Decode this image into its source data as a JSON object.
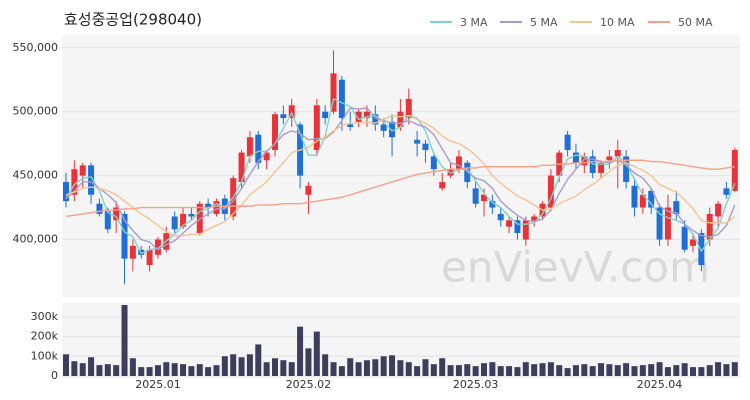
{
  "chart_data": {
    "type": "candlestick",
    "title": "효성중공업(298040)",
    "watermark": "enVievV.com",
    "legend": "top-right",
    "grid": true,
    "up_color": "#e8333a",
    "down_color": "#1f6fd6",
    "categories": [
      null,
      null,
      null,
      null,
      null,
      null,
      null,
      null,
      null,
      null,
      null,
      "2025.01",
      null,
      null,
      null,
      null,
      null,
      null,
      null,
      null,
      null,
      null,
      null,
      null,
      null,
      null,
      null,
      null,
      null,
      "2025.02",
      null,
      null,
      null,
      null,
      null,
      null,
      null,
      null,
      null,
      null,
      null,
      null,
      null,
      null,
      null,
      null,
      null,
      null,
      null,
      "2025.03",
      null,
      null,
      null,
      null,
      null,
      null,
      null,
      null,
      null,
      null,
      null,
      null,
      null,
      null,
      null,
      null,
      null,
      null,
      null,
      null,
      null,
      "2025.04",
      null,
      null,
      null,
      null,
      null,
      null,
      null,
      null,
      null
    ],
    "open": [
      445000,
      435000,
      450000,
      458000,
      428000,
      422000,
      415000,
      420000,
      385000,
      392000,
      380000,
      388000,
      392000,
      418000,
      410000,
      420000,
      405000,
      428000,
      420000,
      432000,
      418000,
      445000,
      465000,
      482000,
      462000,
      470000,
      498000,
      495000,
      490000,
      435000,
      470000,
      500000,
      500000,
      525000,
      490000,
      492000,
      495000,
      498000,
      490000,
      492000,
      488000,
      495000,
      478000,
      475000,
      465000,
      440000,
      450000,
      455000,
      460000,
      440000,
      430000,
      430000,
      420000,
      410000,
      415000,
      400000,
      415000,
      418000,
      425000,
      450000,
      482000,
      468000,
      458000,
      465000,
      452000,
      462000,
      465000,
      465000,
      442000,
      425000,
      438000,
      425000,
      400000,
      430000,
      410000,
      395000,
      405000,
      400000,
      418000,
      440000,
      438000
    ],
    "high": [
      452000,
      462000,
      460000,
      460000,
      432000,
      425000,
      430000,
      422000,
      400000,
      395000,
      395000,
      402000,
      410000,
      422000,
      425000,
      425000,
      430000,
      432000,
      432000,
      435000,
      450000,
      470000,
      485000,
      485000,
      470000,
      500000,
      505000,
      510000,
      492000,
      445000,
      510000,
      505000,
      548000,
      528000,
      500000,
      502000,
      505000,
      505000,
      495000,
      498000,
      510000,
      518000,
      485000,
      478000,
      468000,
      452000,
      460000,
      470000,
      462000,
      445000,
      440000,
      435000,
      425000,
      418000,
      418000,
      418000,
      420000,
      430000,
      455000,
      470000,
      485000,
      475000,
      468000,
      470000,
      462000,
      470000,
      478000,
      470000,
      448000,
      440000,
      440000,
      428000,
      435000,
      438000,
      415000,
      405000,
      408000,
      425000,
      430000,
      445000,
      472000
    ],
    "low": [
      425000,
      430000,
      440000,
      428000,
      418000,
      405000,
      405000,
      365000,
      375000,
      385000,
      375000,
      385000,
      390000,
      405000,
      408000,
      415000,
      403000,
      418000,
      418000,
      415000,
      415000,
      440000,
      460000,
      455000,
      455000,
      465000,
      490000,
      488000,
      440000,
      420000,
      465000,
      490000,
      498000,
      485000,
      485000,
      488000,
      488000,
      485000,
      480000,
      465000,
      485000,
      490000,
      465000,
      460000,
      450000,
      438000,
      448000,
      452000,
      440000,
      425000,
      418000,
      420000,
      410000,
      405000,
      400000,
      395000,
      410000,
      415000,
      422000,
      445000,
      465000,
      455000,
      452000,
      448000,
      448000,
      455000,
      440000,
      440000,
      418000,
      420000,
      420000,
      395000,
      395000,
      415000,
      390000,
      390000,
      375000,
      395000,
      410000,
      432000,
      437000
    ],
    "close": [
      430000,
      455000,
      458000,
      435000,
      420000,
      408000,
      425000,
      385000,
      395000,
      388000,
      392000,
      400000,
      405000,
      408000,
      420000,
      418000,
      428000,
      425000,
      430000,
      420000,
      448000,
      468000,
      480000,
      460000,
      468000,
      498000,
      495000,
      505000,
      450000,
      442000,
      505000,
      495000,
      530000,
      495000,
      488000,
      500000,
      500000,
      490000,
      485000,
      480000,
      500000,
      510000,
      475000,
      470000,
      455000,
      445000,
      455000,
      465000,
      445000,
      428000,
      435000,
      425000,
      415000,
      415000,
      405000,
      415000,
      418000,
      428000,
      450000,
      468000,
      470000,
      460000,
      465000,
      452000,
      460000,
      465000,
      470000,
      445000,
      425000,
      435000,
      425000,
      400000,
      425000,
      420000,
      392000,
      400000,
      380000,
      420000,
      428000,
      435000,
      470000
    ],
    "ylim": [
      355000,
      560000
    ],
    "yticks": [
      {
        "value": 400000,
        "label": "400,000"
      },
      {
        "value": 450000,
        "label": "450,000"
      },
      {
        "value": 500000,
        "label": "500,000"
      },
      {
        "value": 550000,
        "label": "550,000"
      }
    ],
    "series": [
      {
        "name": "3 MA",
        "color": "#7fd3c8",
        "values": [
          432000,
          443000,
          448000,
          449000,
          438000,
          421000,
          418000,
          406000,
          402000,
          389000,
          392000,
          393000,
          399000,
          404000,
          411000,
          415000,
          422000,
          424000,
          428000,
          425000,
          433000,
          445000,
          465000,
          469000,
          469000,
          475000,
          487000,
          499000,
          483000,
          466000,
          466000,
          481000,
          510000,
          507000,
          504000,
          494000,
          496000,
          497000,
          492000,
          485000,
          488000,
          497000,
          495000,
          485000,
          467000,
          457000,
          452000,
          455000,
          455000,
          446000,
          436000,
          429000,
          425000,
          418000,
          412000,
          412000,
          413000,
          420000,
          432000,
          449000,
          463000,
          466000,
          465000,
          459000,
          459000,
          459000,
          465000,
          460000,
          447000,
          435000,
          428000,
          420000,
          417000,
          415000,
          412000,
          404000,
          391000,
          400000,
          409000,
          428000,
          444000
        ]
      },
      {
        "name": "5 MA",
        "color": "#a99bcb",
        "values": [
          432000,
          438000,
          445000,
          445000,
          440000,
          435000,
          429000,
          415000,
          407000,
          400000,
          398000,
          392000,
          396000,
          399000,
          405000,
          411000,
          416000,
          420000,
          424000,
          424000,
          430000,
          440000,
          451000,
          461000,
          469000,
          475000,
          482000,
          485000,
          483000,
          478000,
          479000,
          479000,
          484000,
          493000,
          503000,
          502000,
          503000,
          495000,
          493000,
          491000,
          491000,
          493000,
          490000,
          488000,
          482000,
          471000,
          460000,
          458000,
          453000,
          448000,
          446000,
          440000,
          430000,
          424000,
          419000,
          415000,
          414000,
          416000,
          423000,
          436000,
          447000,
          455000,
          463000,
          463000,
          461000,
          460000,
          462000,
          458000,
          452000,
          448000,
          440000,
          426000,
          422000,
          421000,
          412000,
          407000,
          403000,
          402000,
          404000,
          411000,
          427000
        ]
      },
      {
        "name": "10 MA",
        "color": "#f2c48f",
        "values": [
          435000,
          437000,
          440000,
          441000,
          440000,
          438000,
          435000,
          430000,
          425000,
          420000,
          416000,
          411000,
          406000,
          403000,
          403000,
          404000,
          404000,
          408000,
          411000,
          414000,
          420000,
          427000,
          435000,
          440000,
          445000,
          453000,
          460000,
          468000,
          470000,
          472000,
          477000,
          480000,
          485000,
          489000,
          491000,
          491000,
          492000,
          491000,
          494000,
          497000,
          496000,
          497000,
          494000,
          491000,
          487000,
          481000,
          477000,
          475000,
          471000,
          466000,
          459000,
          450000,
          444000,
          439000,
          434000,
          431000,
          427000,
          423000,
          424000,
          428000,
          431000,
          434000,
          439000,
          443000,
          448000,
          453000,
          458000,
          460000,
          457000,
          454000,
          450000,
          443000,
          440000,
          437000,
          431000,
          424000,
          415000,
          413000,
          413000,
          413000,
          418000
        ]
      },
      {
        "name": "50 MA",
        "color": "#f4a08a",
        "values": [
          418000,
          419000,
          420000,
          421000,
          422000,
          423000,
          423000,
          424000,
          424000,
          425000,
          425000,
          425000,
          425000,
          425000,
          425000,
          425000,
          425000,
          425000,
          426000,
          426000,
          426000,
          426000,
          426000,
          427000,
          427000,
          427000,
          428000,
          428000,
          428000,
          429000,
          430000,
          431000,
          432000,
          433000,
          435000,
          437000,
          439000,
          441000,
          443000,
          445000,
          447000,
          449000,
          451000,
          452000,
          453000,
          454000,
          455000,
          455000,
          456000,
          456000,
          457000,
          457000,
          457000,
          457000,
          457000,
          457000,
          457000,
          458000,
          458000,
          459000,
          459000,
          460000,
          460000,
          461000,
          461000,
          461000,
          462000,
          462000,
          462000,
          462000,
          461000,
          461000,
          460000,
          459000,
          458000,
          457000,
          456000,
          455000,
          455000,
          456000,
          457000
        ]
      }
    ],
    "volume": {
      "color": "#3d3d5c",
      "values": [
        110000,
        75000,
        65000,
        95000,
        55000,
        60000,
        55000,
        360000,
        90000,
        45000,
        45000,
        55000,
        70000,
        65000,
        60000,
        50000,
        60000,
        45000,
        55000,
        100000,
        110000,
        95000,
        110000,
        160000,
        70000,
        90000,
        80000,
        70000,
        250000,
        140000,
        225000,
        110000,
        70000,
        50000,
        90000,
        70000,
        80000,
        85000,
        100000,
        105000,
        80000,
        70000,
        50000,
        85000,
        60000,
        90000,
        55000,
        55000,
        60000,
        50000,
        65000,
        70000,
        50000,
        50000,
        45000,
        70000,
        60000,
        65000,
        70000,
        55000,
        40000,
        55000,
        60000,
        50000,
        65000,
        60000,
        55000,
        65000,
        50000,
        55000,
        60000,
        70000,
        45000,
        55000,
        65000,
        45000,
        45000,
        55000,
        70000,
        60000,
        70000
      ],
      "ylim": [
        0,
        370000
      ],
      "yticks": [
        0,
        {
          "value": 100000,
          "label": "100k"
        },
        {
          "value": 200000,
          "label": "200k"
        },
        {
          "value": 300000,
          "label": "300k"
        }
      ]
    }
  }
}
